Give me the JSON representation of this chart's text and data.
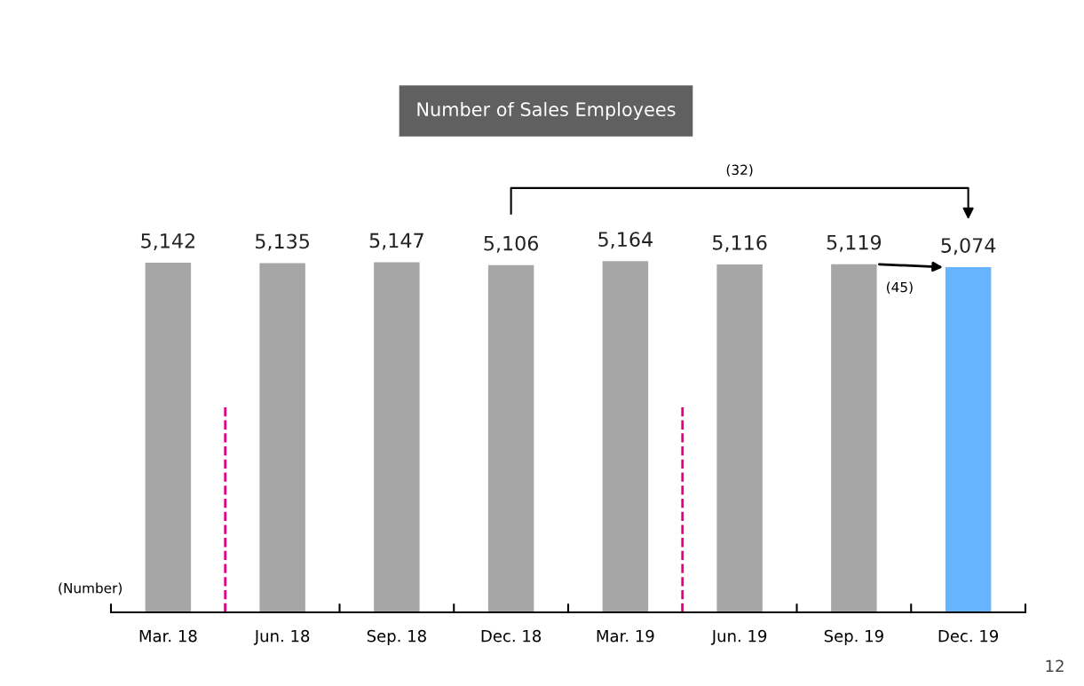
{
  "chart_data": {
    "type": "bar",
    "title": "Number of Sales Employees",
    "categories": [
      "Mar. 18",
      "Jun. 18",
      "Sep. 18",
      "Dec. 18",
      "Mar. 19",
      "Jun. 19",
      "Sep. 19",
      "Dec. 19"
    ],
    "values": [
      5142,
      5135,
      5147,
      5106,
      5164,
      5116,
      5119,
      5074
    ],
    "value_labels": [
      "5,142",
      "5,135",
      "5,147",
      "5,106",
      "5,164",
      "5,116",
      "5,119",
      "5,074"
    ],
    "colors": [
      "#a6a6a6",
      "#a6a6a6",
      "#a6a6a6",
      "#a6a6a6",
      "#a6a6a6",
      "#a6a6a6",
      "#a6a6a6",
      "#66b3ff"
    ],
    "annotations": [
      "(32)",
      "(45)",
      "(Number)",
      "12"
    ]
  }
}
